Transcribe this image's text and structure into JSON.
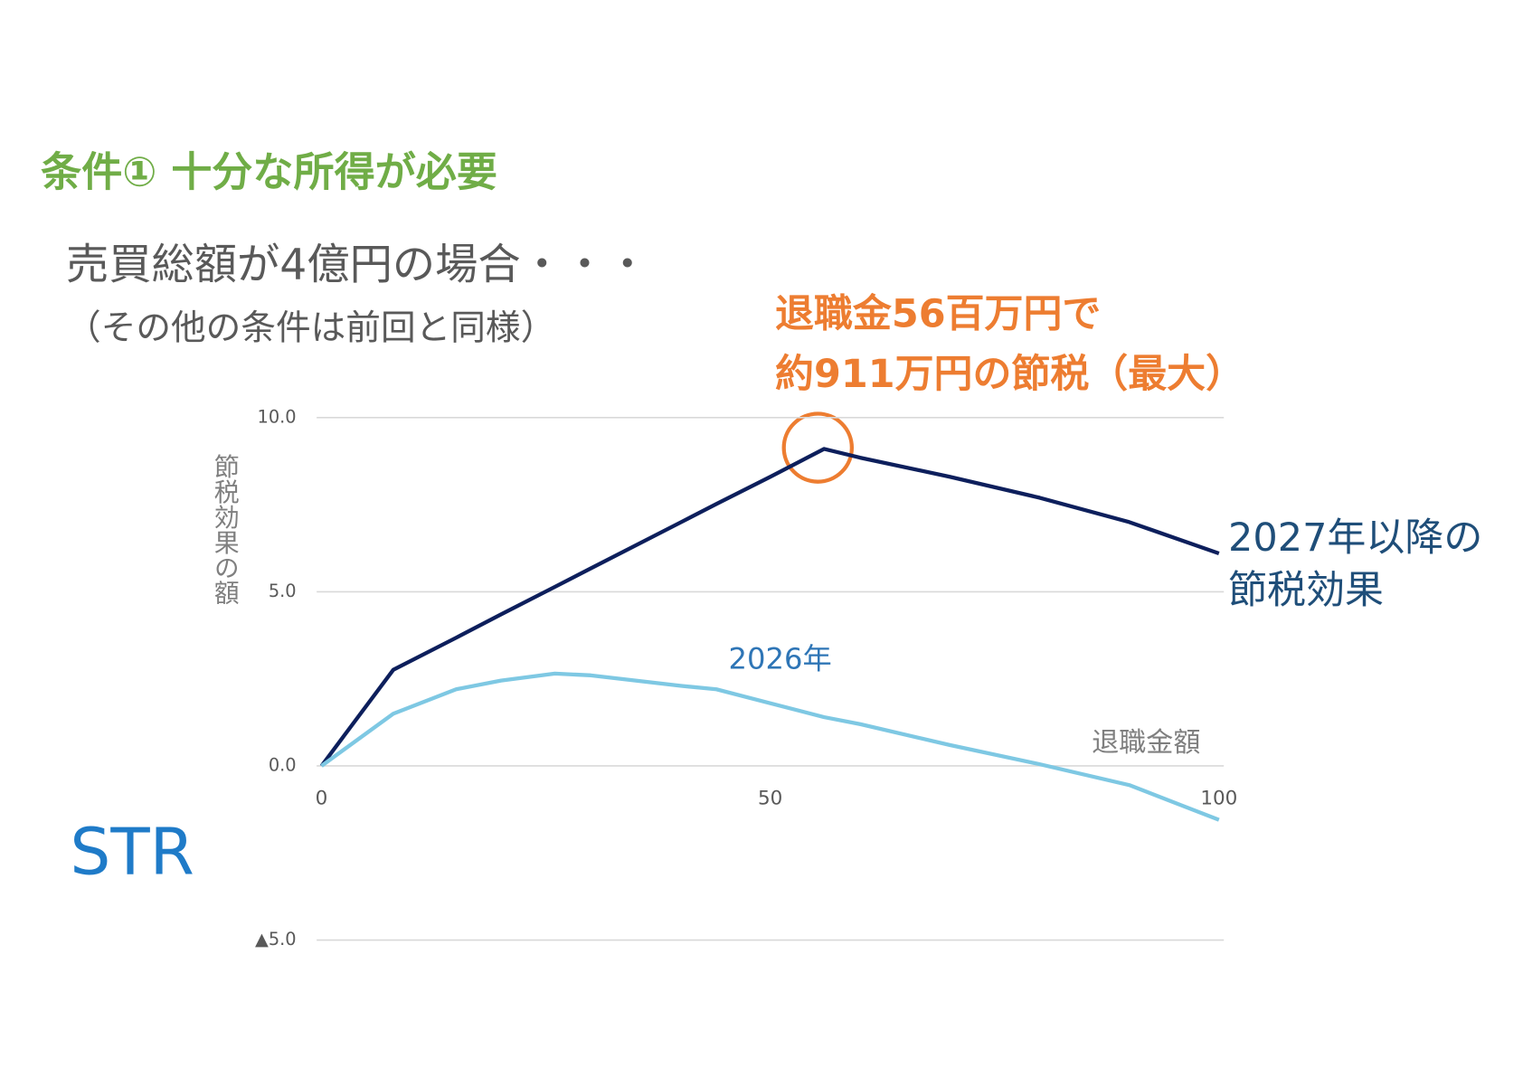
{
  "chart_data": {
    "type": "line",
    "heading": "条件① 十分な所得が必要",
    "title": "売買総額が4億円の場合・・・",
    "subtitle": "（その他の条件は前回と同様）",
    "annotation": [
      "退職金56百万円で",
      "約911万円の節税（最大）"
    ],
    "ylabel": "節税効果の額",
    "xlabel": "退職金額",
    "logo": "STR",
    "x": [
      0,
      8,
      15,
      20,
      26,
      30,
      40,
      44,
      50,
      56,
      60,
      70,
      80,
      90,
      100
    ],
    "series": [
      {
        "name": "2027年以降の節税効果",
        "color": "#0d1f5c",
        "values": [
          0,
          2.76,
          3.68,
          4.35,
          5.14,
          5.67,
          6.99,
          7.52,
          8.3,
          9.1,
          8.85,
          8.3,
          7.7,
          7.0,
          6.1
        ]
      },
      {
        "name": "2026年",
        "color": "#7ec8e3",
        "values": [
          0,
          1.5,
          2.2,
          2.45,
          2.65,
          2.6,
          2.3,
          2.2,
          1.8,
          1.4,
          1.2,
          0.6,
          0.05,
          -0.55,
          -1.55
        ]
      }
    ],
    "xlim": [
      0,
      100
    ],
    "xticks": [
      0,
      50,
      100
    ],
    "ylim": [
      -5,
      10
    ],
    "yticks": [
      {
        "value": 10,
        "label": "10.0"
      },
      {
        "value": 5,
        "label": "5.0"
      },
      {
        "value": 0,
        "label": "0.0"
      },
      {
        "value": -5,
        "label": "▲5.0"
      }
    ],
    "grid": true
  }
}
